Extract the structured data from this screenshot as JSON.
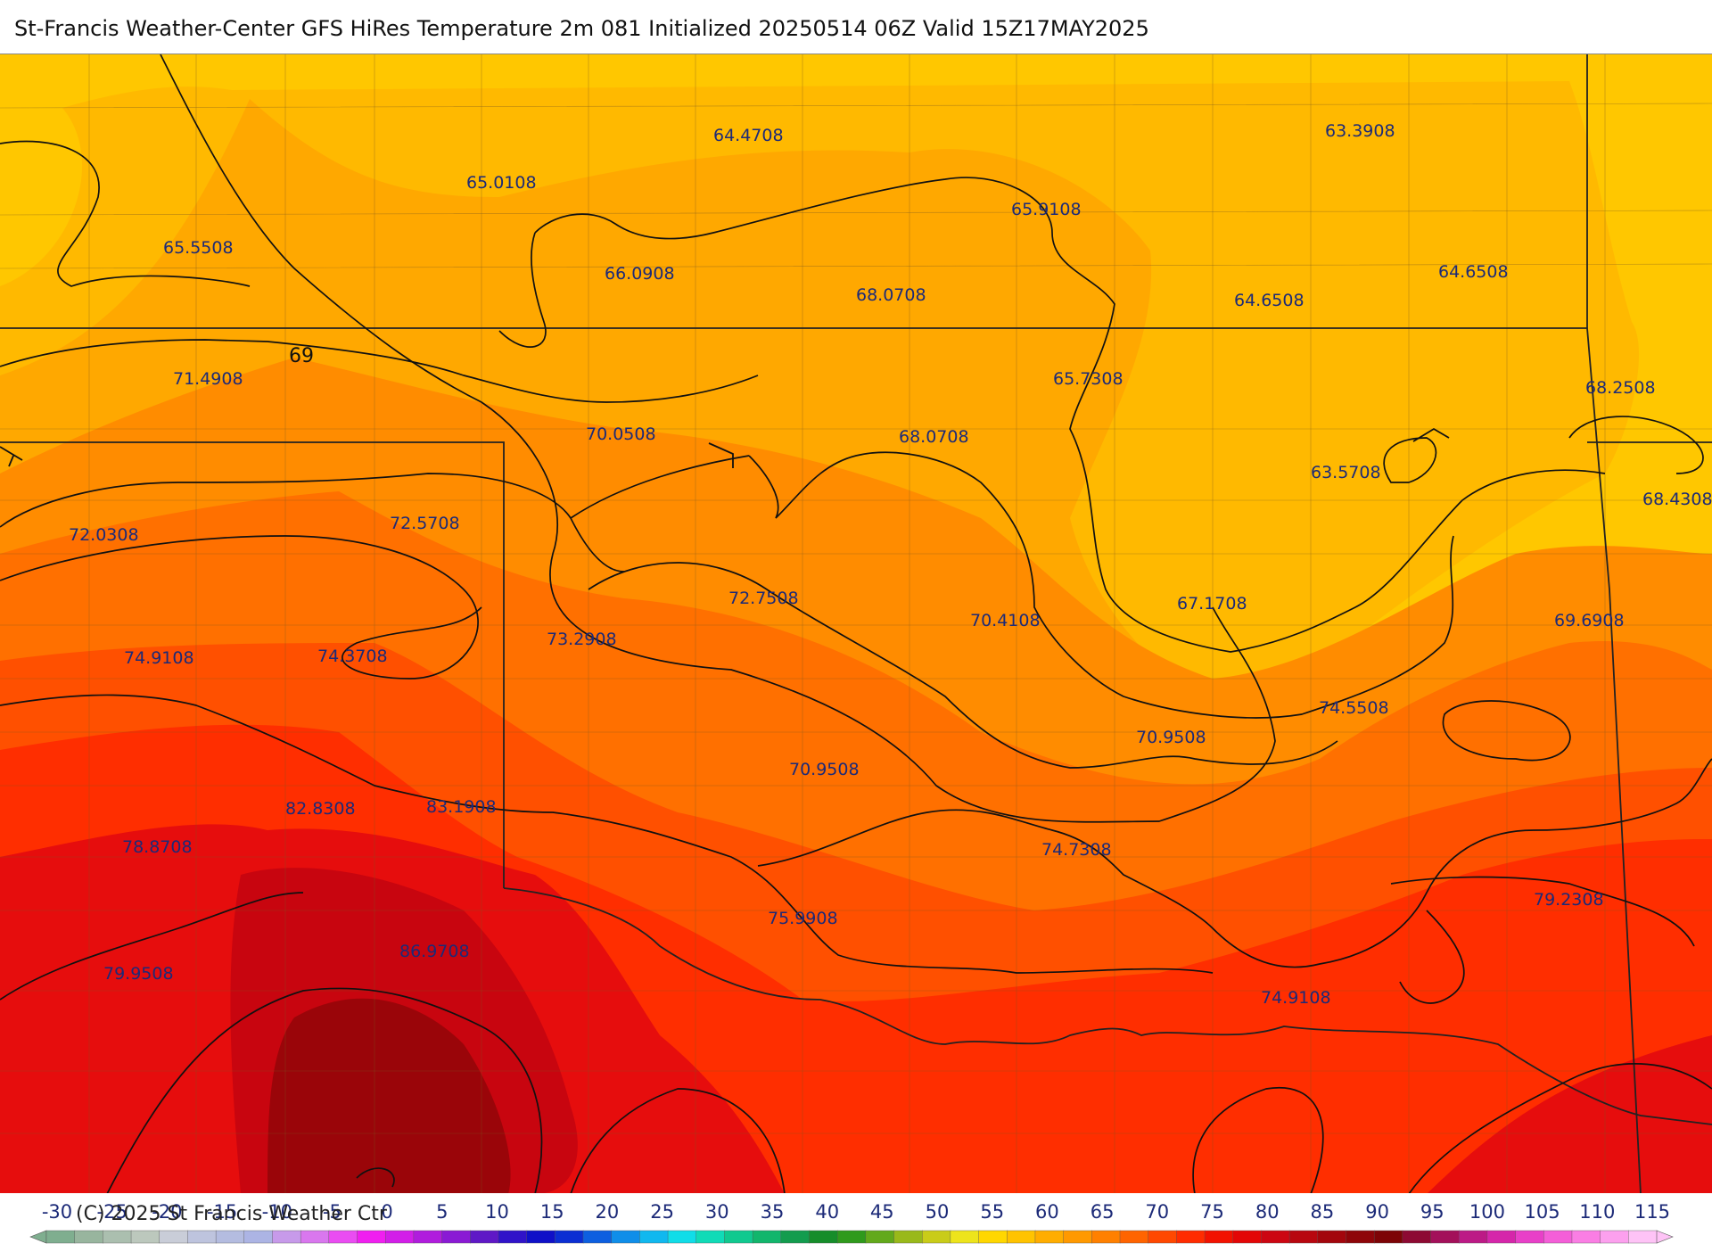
{
  "title": "St-Francis Weather-Center GFS HiRes Temperature 2m  081 Initialized 20250514 06Z Valid 15Z17MAY2025",
  "copyright": "(C) 2025 St Francis Weather Ctr",
  "isotherm_label": "69",
  "value_labels": [
    {
      "text": "64.4708"
    },
    {
      "text": "63.3908"
    },
    {
      "text": "65.0108"
    },
    {
      "text": "65.9108"
    },
    {
      "text": "65.5508"
    },
    {
      "text": "66.0908"
    },
    {
      "text": "68.0708"
    },
    {
      "text": "64.6508"
    },
    {
      "text": "64.6508"
    },
    {
      "text": "71.4908"
    },
    {
      "text": "65.7308"
    },
    {
      "text": "68.2508"
    },
    {
      "text": "70.0508"
    },
    {
      "text": "68.0708"
    },
    {
      "text": "63.5708"
    },
    {
      "text": "68.4308"
    },
    {
      "text": "72.0308"
    },
    {
      "text": "72.5708"
    },
    {
      "text": "72.7508"
    },
    {
      "text": "67.1708"
    },
    {
      "text": "70.4108"
    },
    {
      "text": "69.6908"
    },
    {
      "text": "73.2908"
    },
    {
      "text": "74.9108"
    },
    {
      "text": "74.3708"
    },
    {
      "text": "74.5508"
    },
    {
      "text": "70.9508"
    },
    {
      "text": "70.9508"
    },
    {
      "text": "82.8308"
    },
    {
      "text": "83.1908"
    },
    {
      "text": "78.8708"
    },
    {
      "text": "74.7308"
    },
    {
      "text": "79.2308"
    },
    {
      "text": "75.9908"
    },
    {
      "text": "86.9708"
    },
    {
      "text": "79.9508"
    },
    {
      "text": "74.9108"
    }
  ],
  "legend": {
    "ticks": [
      "-30",
      "-25",
      "-20",
      "-15",
      "-10",
      "-5",
      "0",
      "5",
      "10",
      "15",
      "20",
      "25",
      "30",
      "35",
      "40",
      "45",
      "50",
      "55",
      "60",
      "65",
      "70",
      "75",
      "80",
      "85",
      "90",
      "95",
      "100",
      "105",
      "110",
      "115"
    ],
    "colors": [
      "#7fae8f",
      "#98b59e",
      "#abbfaf",
      "#bcc8bd",
      "#c9cdd8",
      "#bec4de",
      "#b4bce0",
      "#acb4e4",
      "#c79aea",
      "#d977ee",
      "#ea4cf2",
      "#f01ff0",
      "#d21ee8",
      "#b01cdd",
      "#8a1ad4",
      "#5f18c6",
      "#3013c9",
      "#0f10c8",
      "#0b2ed3",
      "#0d5fe0",
      "#0f8ee9",
      "#10b8ef",
      "#10dde8",
      "#10dbb7",
      "#10c98f",
      "#12b66c",
      "#139c4e",
      "#168d2a",
      "#2f9a1c",
      "#62a91b",
      "#99b91a",
      "#c9cc19",
      "#ede41c",
      "#ffd700",
      "#ffc300",
      "#ffad00",
      "#ff9900",
      "#ff8000",
      "#ff6400",
      "#ff4800",
      "#ff2c00",
      "#f21200",
      "#e30606",
      "#cc0612",
      "#b8070f",
      "#a3060c",
      "#8e0509",
      "#7d0406",
      "#8d0a33",
      "#a3105a",
      "#bc1a86",
      "#d526aa",
      "#e840c8",
      "#f45ed8",
      "#fa7ee4",
      "#fca0ee",
      "#fec3f6"
    ]
  },
  "colors": {
    "band_55_60": "#ffcb00",
    "band_60_65": "#ffbe00",
    "band_65_70": "#ffad00",
    "band_70_75": "#ff9600",
    "band_75_80": "#ff7700",
    "band_80_85": "#ff5200",
    "band_85_90": "#ff2d00",
    "band_90_95": "#e60d0d",
    "band_95_100": "#c8050f",
    "band_100_plus": "#9a0509"
  }
}
